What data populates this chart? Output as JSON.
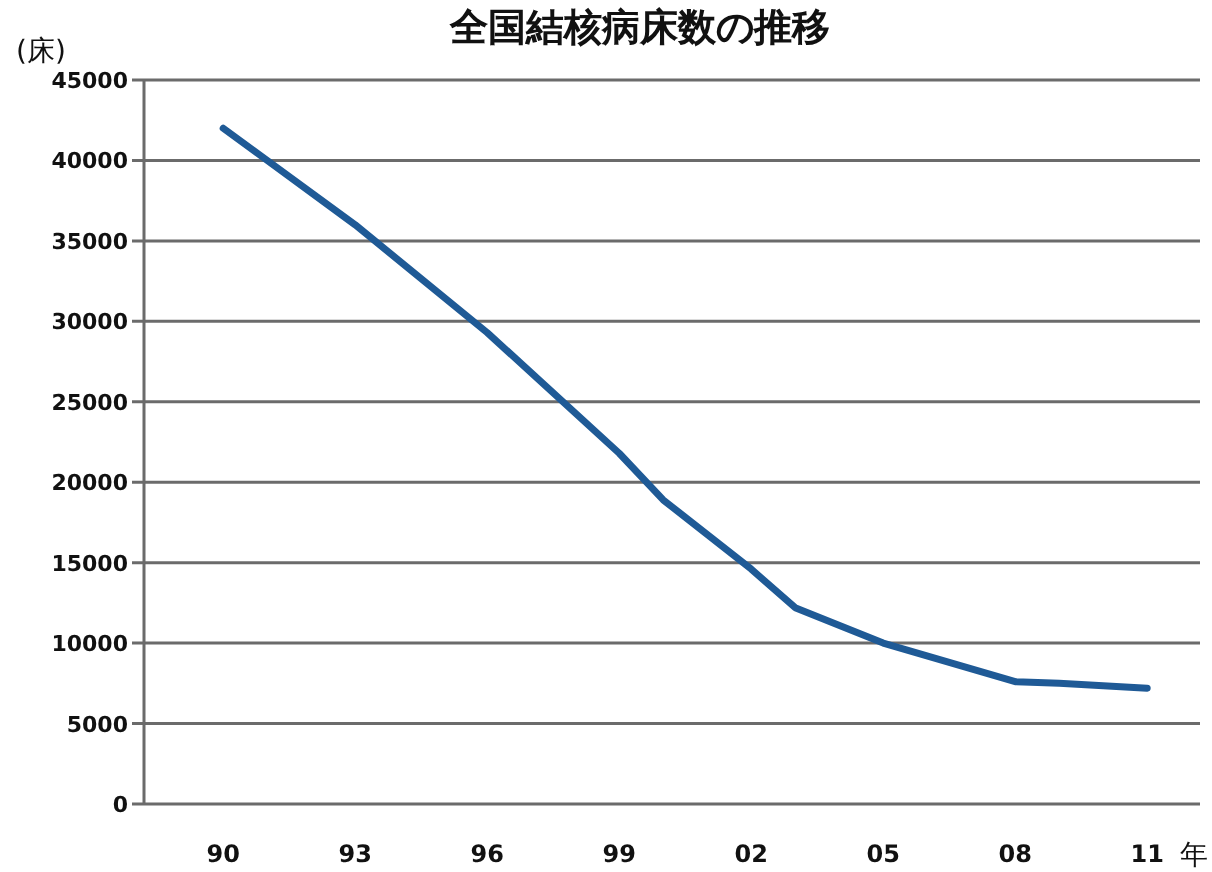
{
  "chart_data": {
    "type": "line",
    "title": "全国結核病床数の推移",
    "ylabel": "(床)",
    "xlabel": "年",
    "x": [
      1990,
      1993,
      1996,
      1999,
      2000,
      2002,
      2003,
      2005,
      2008,
      2009,
      2011
    ],
    "series": [
      {
        "color": "#1f5a96",
        "values": [
          42000,
          36000,
          29300,
          21800,
          18900,
          14600,
          12200,
          10000,
          7600,
          7500,
          7200
        ]
      }
    ],
    "xlim": [
      1988.2,
      2012.2
    ],
    "xticks": [
      {
        "value": 1990,
        "label": "90"
      },
      {
        "value": 1993,
        "label": "93"
      },
      {
        "value": 1996,
        "label": "96"
      },
      {
        "value": 1999,
        "label": "99"
      },
      {
        "value": 2002,
        "label": "02"
      },
      {
        "value": 2005,
        "label": "05"
      },
      {
        "value": 2008,
        "label": "08"
      },
      {
        "value": 2011,
        "label": "11"
      }
    ],
    "ylim": [
      0,
      45000
    ],
    "yticks": [
      0,
      5000,
      10000,
      15000,
      20000,
      25000,
      30000,
      35000,
      40000,
      45000
    ],
    "grid": "y",
    "marker": "none",
    "line_style": "solid"
  }
}
